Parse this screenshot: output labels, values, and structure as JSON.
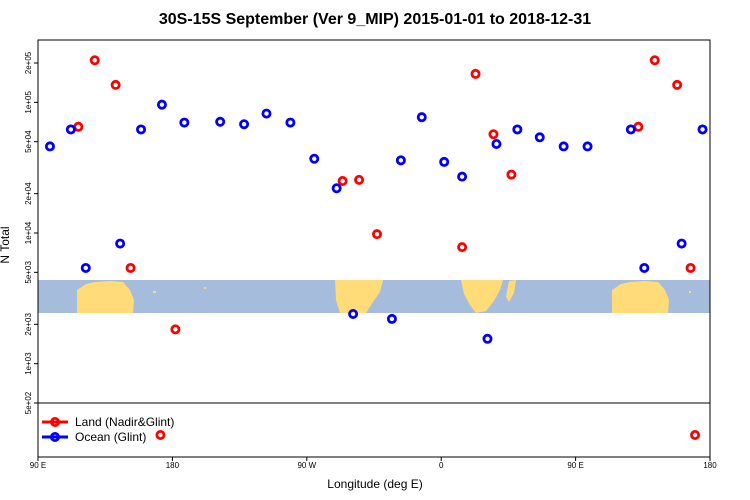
{
  "chart_data": {
    "type": "scatter",
    "title": "30S-15S September (Ver 9_MIP)   2015-01-01 to 2018-12-31",
    "xlabel": "Longitude (deg E)",
    "ylabel": "N Total",
    "x_tick_labels": [
      "90 E",
      "180",
      "90 W",
      "0",
      "90 E",
      "180"
    ],
    "x_ticks": [
      90,
      180,
      270,
      360,
      450,
      540
    ],
    "xlim": [
      90,
      540
    ],
    "y_scale": "log",
    "y_tick_labels": [
      "5e+02",
      "1e+03",
      "2e+03",
      "5e+03",
      "1e+04",
      "2e+04",
      "5e+04",
      "1e+05",
      "2e+05"
    ],
    "y_ticks": [
      500,
      1000,
      2000,
      5000,
      10000,
      20000,
      50000,
      100000,
      200000
    ],
    "ylim": [
      500,
      300000
    ],
    "series": [
      {
        "name": "Land (Nadir&Glint)",
        "color": "#ff0000",
        "points": [
          {
            "x": 117,
            "y": 65000
          },
          {
            "x": 128,
            "y": 210000
          },
          {
            "x": 142,
            "y": 136000
          },
          {
            "x": 152,
            "y": 5400
          },
          {
            "x": 182,
            "y": 1830
          },
          {
            "x": 294,
            "y": 25000
          },
          {
            "x": 305,
            "y": 25500
          },
          {
            "x": 317,
            "y": 9800
          },
          {
            "x": 374,
            "y": 7800
          },
          {
            "x": 383,
            "y": 165000
          },
          {
            "x": 395,
            "y": 57000
          },
          {
            "x": 407,
            "y": 28000
          },
          {
            "x": 492,
            "y": 65000
          },
          {
            "x": 503,
            "y": 210000
          },
          {
            "x": 518,
            "y": 136000
          },
          {
            "x": 527,
            "y": 5400
          }
        ]
      },
      {
        "name": "Ocean (Glint)",
        "color": "#0000ff",
        "points": [
          {
            "x": 98,
            "y": 46000
          },
          {
            "x": 112,
            "y": 62000
          },
          {
            "x": 122,
            "y": 5400
          },
          {
            "x": 145,
            "y": 8300
          },
          {
            "x": 159,
            "y": 62000
          },
          {
            "x": 173,
            "y": 96000
          },
          {
            "x": 188,
            "y": 70000
          },
          {
            "x": 212,
            "y": 71000
          },
          {
            "x": 228,
            "y": 68000
          },
          {
            "x": 243,
            "y": 82000
          },
          {
            "x": 259,
            "y": 70000
          },
          {
            "x": 275,
            "y": 37000
          },
          {
            "x": 290,
            "y": 22000
          },
          {
            "x": 301,
            "y": 2400
          },
          {
            "x": 327,
            "y": 2200
          },
          {
            "x": 333,
            "y": 36000
          },
          {
            "x": 347,
            "y": 77000
          },
          {
            "x": 362,
            "y": 35000
          },
          {
            "x": 374,
            "y": 27000
          },
          {
            "x": 391,
            "y": 1550
          },
          {
            "x": 397,
            "y": 48000
          },
          {
            "x": 411,
            "y": 62000
          },
          {
            "x": 426,
            "y": 54000
          },
          {
            "x": 442,
            "y": 46000
          },
          {
            "x": 458,
            "y": 46000
          },
          {
            "x": 487,
            "y": 62000
          },
          {
            "x": 496,
            "y": 5400
          },
          {
            "x": 521,
            "y": 8300
          },
          {
            "x": 535,
            "y": 62000
          }
        ]
      }
    ],
    "out_of_range_land": [
      {
        "x": 172,
        "y": 300
      },
      {
        "x": 530,
        "y": 300
      }
    ],
    "legend": {
      "position": "bottom-left"
    },
    "grid": false
  }
}
